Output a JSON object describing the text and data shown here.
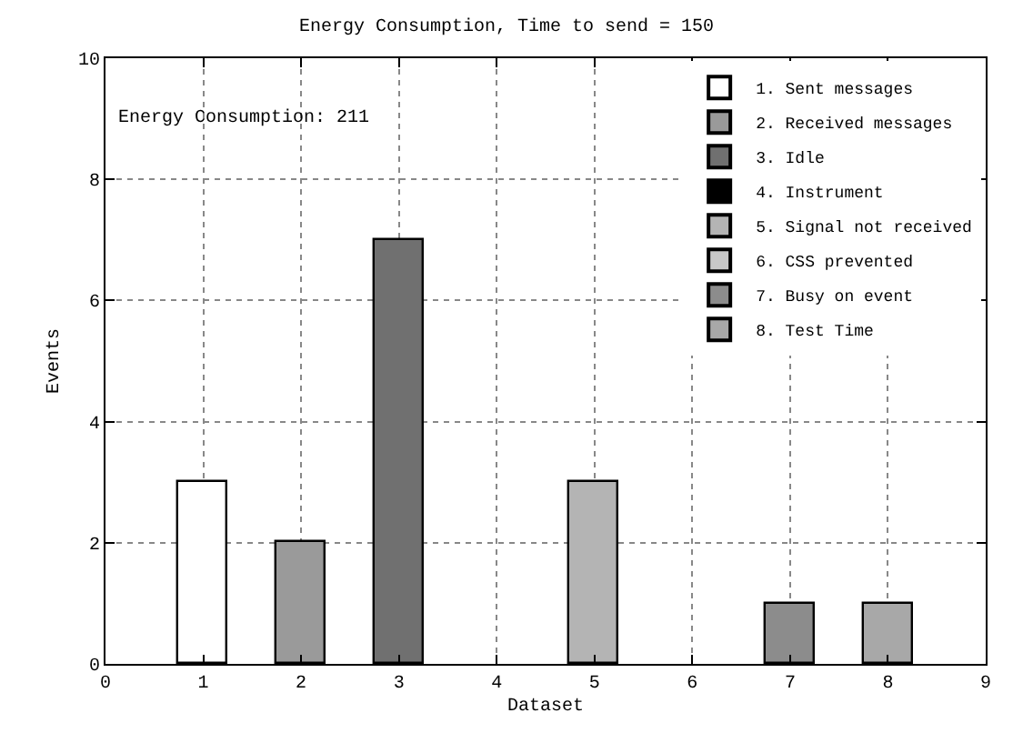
{
  "chart_data": {
    "type": "bar",
    "title": "Energy Consumption, Time to send = 150",
    "xlabel": "Dataset",
    "ylabel": "Events",
    "annotations": [
      "Energy Consumption: 211"
    ],
    "series": [
      {
        "name": "1. Sent messages",
        "color": "#000000",
        "x": [
          1
        ],
        "values": [
          3
        ]
      },
      {
        "name": "2. Received messages",
        "color": "#9a9a9a",
        "x": [
          2
        ],
        "values": [
          2
        ]
      },
      {
        "name": "3. Idle",
        "color": "#707070",
        "x": [
          3
        ],
        "values": [
          7
        ]
      },
      {
        "name": "4. Instrument",
        "color": "#000000"
      },
      {
        "name": "5. Signal not received",
        "color": "#b4b4b4",
        "x": [
          5
        ],
        "values": [
          3
        ]
      },
      {
        "name": "6. CSS prevented",
        "color": "#c8c8c8"
      },
      {
        "name": "7. Busy on event",
        "color": "#8c8c8c",
        "x": [
          7
        ],
        "values": [
          1
        ]
      },
      {
        "name": "8. Test Time",
        "color": "#a8a8a8",
        "x": [
          8
        ],
        "values": [
          1
        ]
      }
    ],
    "xlim": [
      0,
      9
    ],
    "xticks": [
      0,
      1,
      2,
      3,
      4,
      5,
      6,
      7,
      8,
      9
    ],
    "ylim": [
      0,
      10
    ],
    "yticks": [
      0,
      2,
      4,
      6,
      8,
      10
    ],
    "grid": true,
    "legend": "top right"
  }
}
